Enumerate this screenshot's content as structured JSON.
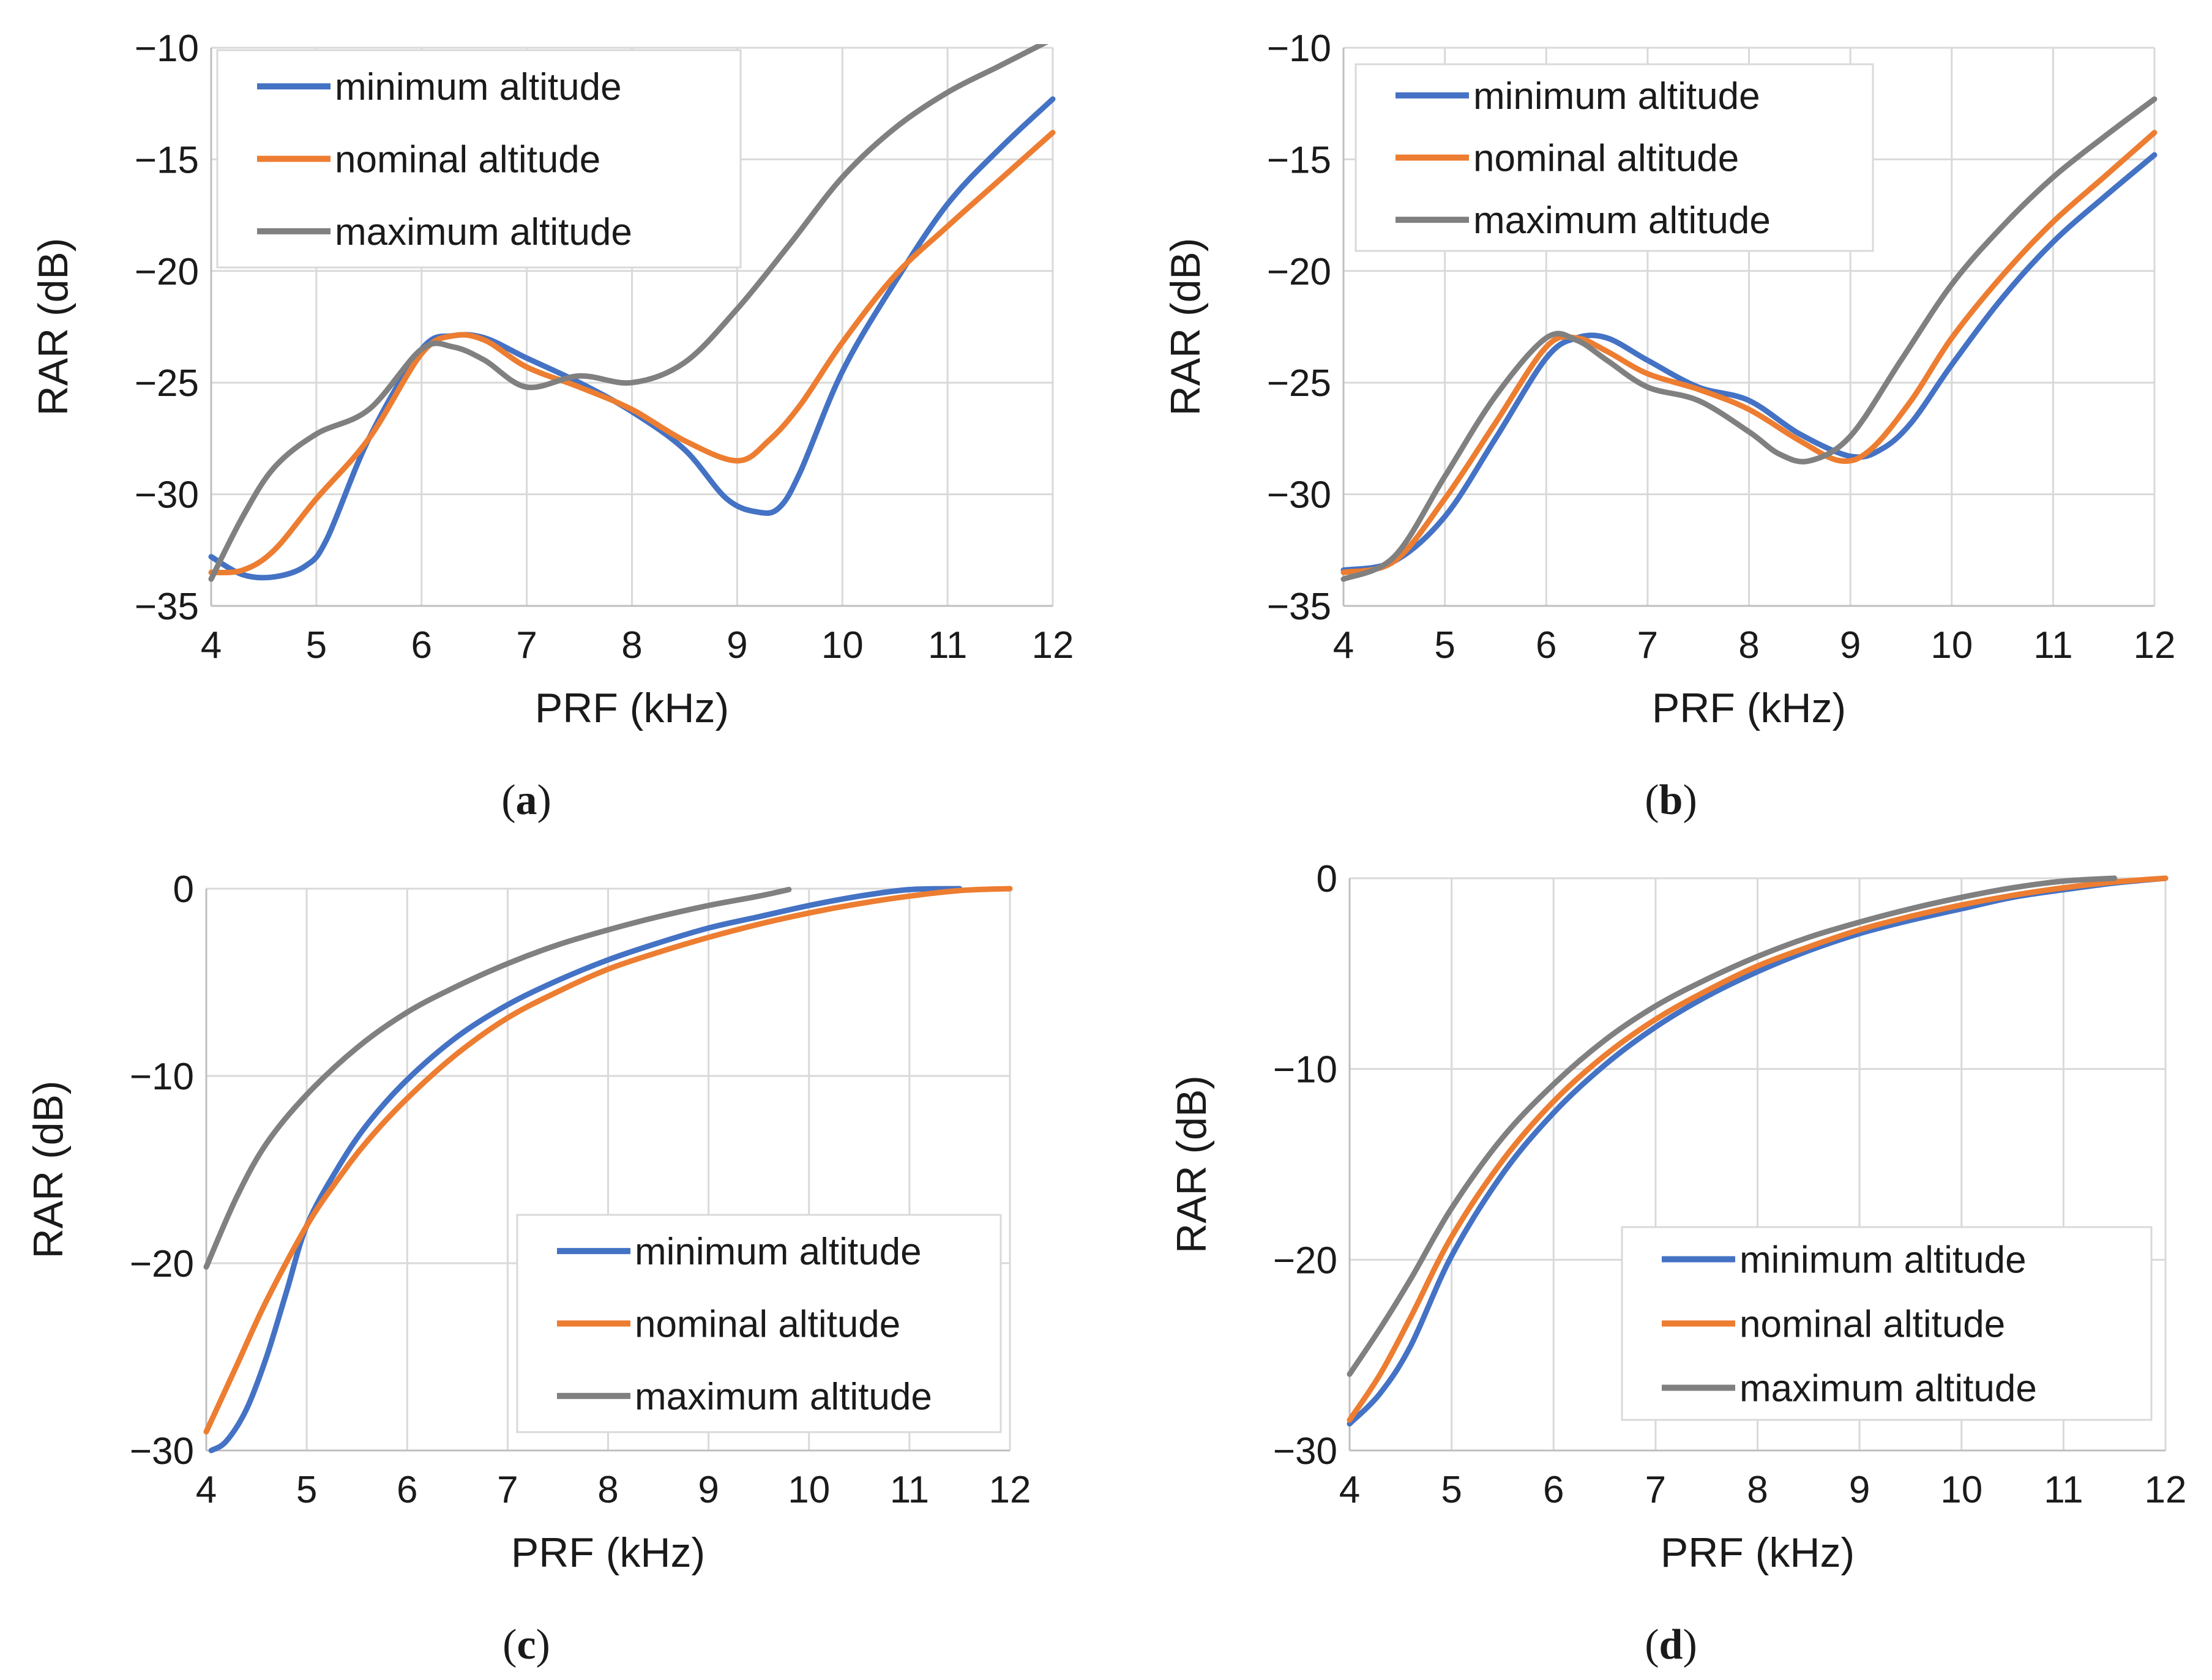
{
  "colors": {
    "minimum": "#4472c4",
    "nominal": "#ed7d31",
    "maximum": "#808080"
  },
  "chart_data": [
    {
      "id": "a",
      "type": "line",
      "caption": {
        "open": "(",
        "letter": "a",
        "close": ")"
      },
      "xlabel": "PRF (kHz)",
      "ylabel": "RAR (dB)",
      "xlim": [
        4,
        12
      ],
      "ylim": [
        -35,
        -10
      ],
      "xticks": [
        4,
        5,
        6,
        7,
        8,
        9,
        10,
        11,
        12
      ],
      "yticks": [
        -35,
        -30,
        -25,
        -20,
        -15,
        -10
      ],
      "ytick_labels": [
        "−35",
        "−30",
        "−25",
        "−20",
        "−15",
        "−10"
      ],
      "grid": true,
      "legend_position": "top-left",
      "series": [
        {
          "name": "minimum altitude",
          "color": "#4472c4",
          "x": [
            4,
            4.3,
            4.6,
            4.9,
            5.1,
            5.5,
            6.0,
            6.3,
            6.6,
            7.0,
            7.5,
            8.0,
            8.5,
            8.9,
            9.2,
            9.4,
            9.6,
            10.0,
            10.5,
            11.0,
            11.5,
            12.0
          ],
          "y": [
            -32.8,
            -33.6,
            -33.7,
            -33.2,
            -32.0,
            -27.5,
            -23.5,
            -22.9,
            -23.0,
            -23.9,
            -25.0,
            -26.3,
            -28.0,
            -30.2,
            -30.8,
            -30.6,
            -29.0,
            -24.5,
            -20.5,
            -17.0,
            -14.5,
            -12.3
          ]
        },
        {
          "name": "nominal altitude",
          "color": "#ed7d31",
          "x": [
            4,
            4.3,
            4.6,
            5.0,
            5.5,
            6.0,
            6.3,
            6.6,
            7.0,
            7.5,
            8.0,
            8.5,
            9.0,
            9.3,
            9.6,
            10.0,
            10.5,
            11.0,
            11.5,
            12.0
          ],
          "y": [
            -33.5,
            -33.4,
            -32.5,
            -30.2,
            -27.5,
            -23.7,
            -22.9,
            -23.1,
            -24.3,
            -25.2,
            -26.2,
            -27.6,
            -28.5,
            -27.6,
            -26.0,
            -23.2,
            -20.2,
            -18.0,
            -15.9,
            -13.8
          ]
        },
        {
          "name": "maximum altitude",
          "color": "#808080",
          "x": [
            4,
            4.3,
            4.6,
            5.0,
            5.5,
            6.0,
            6.3,
            6.6,
            7.0,
            7.5,
            8.0,
            8.5,
            9.0,
            9.5,
            10.0,
            10.5,
            11.0,
            11.5,
            12.0
          ],
          "y": [
            -33.8,
            -31.0,
            -28.8,
            -27.3,
            -26.2,
            -23.5,
            -23.4,
            -24.0,
            -25.2,
            -24.7,
            -25.0,
            -24.1,
            -21.7,
            -18.8,
            -15.8,
            -13.6,
            -12.0,
            -10.8,
            -9.6
          ]
        }
      ]
    },
    {
      "id": "b",
      "type": "line",
      "caption": {
        "open": "(",
        "letter": "b",
        "close": ")"
      },
      "xlabel": "PRF (kHz)",
      "ylabel": "RAR (dB)",
      "xlim": [
        4,
        12
      ],
      "ylim": [
        -35,
        -10
      ],
      "xticks": [
        4,
        5,
        6,
        7,
        8,
        9,
        10,
        11,
        12
      ],
      "yticks": [
        -35,
        -30,
        -25,
        -20,
        -15,
        -10
      ],
      "ytick_labels": [
        "−35",
        "−30",
        "−25",
        "−20",
        "−15",
        "−10"
      ],
      "grid": true,
      "legend_position": "top-left",
      "series": [
        {
          "name": "minimum altitude",
          "color": "#4472c4",
          "x": [
            4,
            4.5,
            5.0,
            5.5,
            6.0,
            6.3,
            6.6,
            7.0,
            7.5,
            8.0,
            8.5,
            9.0,
            9.3,
            9.6,
            10.0,
            10.5,
            11.0,
            11.5,
            12.0
          ],
          "y": [
            -33.4,
            -33.0,
            -31.0,
            -27.5,
            -23.9,
            -23.0,
            -23.0,
            -24.0,
            -25.2,
            -25.8,
            -27.3,
            -28.3,
            -28.0,
            -26.8,
            -24.2,
            -21.2,
            -18.7,
            -16.7,
            -14.8
          ]
        },
        {
          "name": "nominal altitude",
          "color": "#ed7d31",
          "x": [
            4,
            4.5,
            5.0,
            5.5,
            6.0,
            6.3,
            6.6,
            7.0,
            7.5,
            8.0,
            8.5,
            8.9,
            9.2,
            9.6,
            10.0,
            10.5,
            11.0,
            11.5,
            12.0
          ],
          "y": [
            -33.5,
            -33.0,
            -30.2,
            -26.8,
            -23.4,
            -23.0,
            -23.6,
            -24.6,
            -25.3,
            -26.2,
            -27.6,
            -28.5,
            -28.0,
            -25.8,
            -23.0,
            -20.2,
            -17.8,
            -15.8,
            -13.8
          ]
        },
        {
          "name": "maximum altitude",
          "color": "#808080",
          "x": [
            4,
            4.5,
            5.0,
            5.5,
            6.0,
            6.3,
            6.6,
            7.0,
            7.5,
            8.0,
            8.3,
            8.6,
            9.0,
            9.5,
            10.0,
            10.5,
            11.0,
            11.5,
            12.0
          ],
          "y": [
            -33.8,
            -32.8,
            -29.2,
            -25.6,
            -23.0,
            -23.1,
            -24.0,
            -25.2,
            -25.8,
            -27.2,
            -28.2,
            -28.5,
            -27.4,
            -24.0,
            -20.6,
            -18.0,
            -15.8,
            -14.0,
            -12.3
          ]
        }
      ]
    },
    {
      "id": "c",
      "type": "line",
      "caption": {
        "open": "(",
        "letter": "c",
        "close": ")"
      },
      "xlabel": "PRF (kHz)",
      "ylabel": "RAR (dB)",
      "xlim": [
        4,
        12
      ],
      "ylim": [
        -30,
        0
      ],
      "xticks": [
        4,
        5,
        6,
        7,
        8,
        9,
        10,
        11,
        12
      ],
      "yticks": [
        -30,
        -20,
        -10,
        0
      ],
      "ytick_labels": [
        "−30",
        "−20",
        "−10",
        "0"
      ],
      "grid": true,
      "legend_position": "bottom-right",
      "series": [
        {
          "name": "minimum altitude",
          "color": "#4472c4",
          "x": [
            4.05,
            4.2,
            4.4,
            4.6,
            4.8,
            5.0,
            5.3,
            5.6,
            6.0,
            6.5,
            7.0,
            7.5,
            8.0,
            8.5,
            9.0,
            9.5,
            10.0,
            10.5,
            11.0,
            11.5
          ],
          "y": [
            -30.0,
            -29.5,
            -27.8,
            -25.0,
            -21.5,
            -18.0,
            -15.0,
            -12.6,
            -10.2,
            -7.9,
            -6.2,
            -4.9,
            -3.8,
            -2.9,
            -2.1,
            -1.5,
            -0.9,
            -0.4,
            -0.05,
            0.0
          ]
        },
        {
          "name": "nominal altitude",
          "color": "#ed7d31",
          "x": [
            4,
            4.3,
            4.6,
            5.0,
            5.3,
            5.6,
            6.0,
            6.5,
            7.0,
            7.5,
            8.0,
            8.5,
            9.0,
            9.5,
            10.0,
            10.5,
            11.0,
            11.5,
            12.0
          ],
          "y": [
            -29.0,
            -25.5,
            -22.0,
            -18.0,
            -15.6,
            -13.5,
            -11.2,
            -8.8,
            -6.9,
            -5.5,
            -4.3,
            -3.4,
            -2.6,
            -1.9,
            -1.3,
            -0.8,
            -0.4,
            -0.1,
            0.0
          ]
        },
        {
          "name": "maximum altitude",
          "color": "#808080",
          "x": [
            4,
            4.3,
            4.6,
            5.0,
            5.5,
            6.0,
            6.5,
            7.0,
            7.5,
            8.0,
            8.5,
            9.0,
            9.5,
            9.8
          ],
          "y": [
            -20.2,
            -16.5,
            -13.6,
            -11.0,
            -8.5,
            -6.6,
            -5.2,
            -4.0,
            -3.0,
            -2.2,
            -1.5,
            -0.9,
            -0.4,
            -0.05
          ]
        }
      ]
    },
    {
      "id": "d",
      "type": "line",
      "caption": {
        "open": "(",
        "letter": "d",
        "close": ")"
      },
      "xlabel": "PRF (kHz)",
      "ylabel": "RAR (dB)",
      "xlim": [
        4,
        12
      ],
      "ylim": [
        -30,
        0
      ],
      "xticks": [
        4,
        5,
        6,
        7,
        8,
        9,
        10,
        11,
        12
      ],
      "yticks": [
        -30,
        -20,
        -10,
        0
      ],
      "ytick_labels": [
        "−30",
        "−20",
        "−10",
        "0"
      ],
      "grid": true,
      "legend_position": "bottom-right",
      "series": [
        {
          "name": "minimum altitude",
          "color": "#4472c4",
          "x": [
            4,
            4.3,
            4.6,
            5.0,
            5.5,
            6.0,
            6.5,
            7.0,
            7.5,
            8.0,
            8.5,
            9.0,
            9.5,
            10.0,
            10.5,
            11.0,
            11.5,
            12.0
          ],
          "y": [
            -28.6,
            -27.0,
            -24.5,
            -19.8,
            -15.5,
            -12.3,
            -9.8,
            -7.8,
            -6.2,
            -4.9,
            -3.8,
            -2.9,
            -2.2,
            -1.6,
            -1.0,
            -0.6,
            -0.25,
            0.0
          ]
        },
        {
          "name": "nominal altitude",
          "color": "#ed7d31",
          "x": [
            4,
            4.3,
            4.6,
            5.0,
            5.5,
            6.0,
            6.5,
            7.0,
            7.5,
            8.0,
            8.5,
            9.0,
            9.5,
            10.0,
            10.5,
            11.0,
            11.5,
            12.0
          ],
          "y": [
            -28.4,
            -26.0,
            -23.0,
            -18.8,
            -14.8,
            -11.7,
            -9.3,
            -7.4,
            -5.9,
            -4.6,
            -3.6,
            -2.7,
            -2.0,
            -1.4,
            -0.9,
            -0.5,
            -0.2,
            0.0
          ]
        },
        {
          "name": "maximum altitude",
          "color": "#808080",
          "x": [
            4,
            4.3,
            4.6,
            5.0,
            5.5,
            6.0,
            6.5,
            7.0,
            7.5,
            8.0,
            8.5,
            9.0,
            9.5,
            10.0,
            10.5,
            11.0,
            11.5
          ],
          "y": [
            -26.0,
            -23.6,
            -21.0,
            -17.3,
            -13.6,
            -10.8,
            -8.5,
            -6.7,
            -5.3,
            -4.1,
            -3.1,
            -2.3,
            -1.6,
            -1.0,
            -0.5,
            -0.15,
            0.0
          ]
        }
      ]
    }
  ]
}
